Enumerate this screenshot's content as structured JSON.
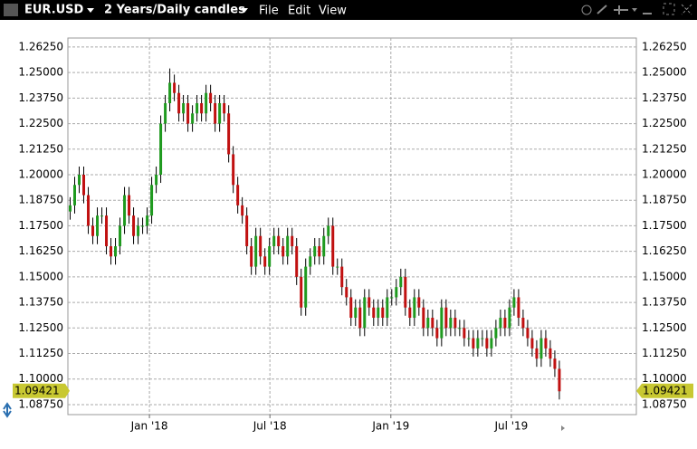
{
  "toolbar": {
    "symbol": "EUR.USD",
    "period": "2 Years/Daily candles",
    "menu": [
      "File",
      "Edit",
      "View"
    ]
  },
  "chart_data": {
    "type": "candlestick",
    "ohlc": [
      [
        1.182,
        1.189,
        1.178,
        1.185
      ],
      [
        1.185,
        1.199,
        1.181,
        1.195
      ],
      [
        1.195,
        1.204,
        1.191,
        1.2
      ],
      [
        1.2,
        1.204,
        1.186,
        1.19
      ],
      [
        1.19,
        1.194,
        1.171,
        1.175
      ],
      [
        1.175,
        1.179,
        1.166,
        1.17
      ],
      [
        1.17,
        1.184,
        1.166,
        1.18
      ],
      [
        1.18,
        1.184,
        1.176,
        1.18
      ],
      [
        1.18,
        1.184,
        1.161,
        1.165
      ],
      [
        1.165,
        1.169,
        1.156,
        1.16
      ],
      [
        1.16,
        1.169,
        1.156,
        1.165
      ],
      [
        1.165,
        1.179,
        1.161,
        1.175
      ],
      [
        1.175,
        1.194,
        1.171,
        1.19
      ],
      [
        1.19,
        1.194,
        1.176,
        1.18
      ],
      [
        1.18,
        1.184,
        1.166,
        1.17
      ],
      [
        1.17,
        1.179,
        1.166,
        1.175
      ],
      [
        1.175,
        1.179,
        1.171,
        1.175
      ],
      [
        1.175,
        1.184,
        1.171,
        1.18
      ],
      [
        1.18,
        1.199,
        1.176,
        1.195
      ],
      [
        1.195,
        1.204,
        1.191,
        1.2
      ],
      [
        1.2,
        1.229,
        1.196,
        1.225
      ],
      [
        1.225,
        1.239,
        1.221,
        1.235
      ],
      [
        1.235,
        1.252,
        1.231,
        1.245
      ],
      [
        1.245,
        1.249,
        1.236,
        1.24
      ],
      [
        1.24,
        1.244,
        1.226,
        1.23
      ],
      [
        1.23,
        1.239,
        1.226,
        1.235
      ],
      [
        1.235,
        1.239,
        1.221,
        1.225
      ],
      [
        1.225,
        1.234,
        1.221,
        1.23
      ],
      [
        1.23,
        1.239,
        1.226,
        1.235
      ],
      [
        1.235,
        1.239,
        1.226,
        1.23
      ],
      [
        1.23,
        1.244,
        1.226,
        1.24
      ],
      [
        1.24,
        1.244,
        1.231,
        1.235
      ],
      [
        1.235,
        1.239,
        1.221,
        1.225
      ],
      [
        1.225,
        1.239,
        1.221,
        1.235
      ],
      [
        1.235,
        1.239,
        1.226,
        1.23
      ],
      [
        1.23,
        1.234,
        1.206,
        1.21
      ],
      [
        1.21,
        1.214,
        1.191,
        1.195
      ],
      [
        1.195,
        1.199,
        1.181,
        1.185
      ],
      [
        1.185,
        1.189,
        1.176,
        1.18
      ],
      [
        1.18,
        1.184,
        1.161,
        1.165
      ],
      [
        1.165,
        1.169,
        1.151,
        1.155
      ],
      [
        1.155,
        1.174,
        1.151,
        1.17
      ],
      [
        1.17,
        1.174,
        1.156,
        1.16
      ],
      [
        1.16,
        1.164,
        1.151,
        1.155
      ],
      [
        1.155,
        1.169,
        1.151,
        1.165
      ],
      [
        1.165,
        1.174,
        1.161,
        1.17
      ],
      [
        1.17,
        1.174,
        1.161,
        1.165
      ],
      [
        1.165,
        1.169,
        1.156,
        1.16
      ],
      [
        1.16,
        1.174,
        1.156,
        1.17
      ],
      [
        1.17,
        1.174,
        1.161,
        1.165
      ],
      [
        1.165,
        1.169,
        1.146,
        1.15
      ],
      [
        1.15,
        1.154,
        1.131,
        1.135
      ],
      [
        1.135,
        1.159,
        1.131,
        1.155
      ],
      [
        1.155,
        1.164,
        1.151,
        1.16
      ],
      [
        1.16,
        1.169,
        1.156,
        1.165
      ],
      [
        1.165,
        1.169,
        1.156,
        1.16
      ],
      [
        1.16,
        1.174,
        1.156,
        1.17
      ],
      [
        1.17,
        1.179,
        1.166,
        1.175
      ],
      [
        1.175,
        1.179,
        1.151,
        1.155
      ],
      [
        1.155,
        1.159,
        1.151,
        1.155
      ],
      [
        1.155,
        1.159,
        1.141,
        1.145
      ],
      [
        1.145,
        1.149,
        1.136,
        1.14
      ],
      [
        1.14,
        1.144,
        1.126,
        1.13
      ],
      [
        1.13,
        1.139,
        1.126,
        1.135
      ],
      [
        1.135,
        1.139,
        1.121,
        1.125
      ],
      [
        1.125,
        1.144,
        1.121,
        1.14
      ],
      [
        1.14,
        1.144,
        1.131,
        1.135
      ],
      [
        1.135,
        1.139,
        1.126,
        1.13
      ],
      [
        1.13,
        1.139,
        1.126,
        1.135
      ],
      [
        1.135,
        1.139,
        1.126,
        1.13
      ],
      [
        1.13,
        1.144,
        1.126,
        1.14
      ],
      [
        1.14,
        1.144,
        1.136,
        1.14
      ],
      [
        1.14,
        1.149,
        1.136,
        1.145
      ],
      [
        1.145,
        1.154,
        1.141,
        1.15
      ],
      [
        1.15,
        1.154,
        1.131,
        1.135
      ],
      [
        1.135,
        1.139,
        1.126,
        1.13
      ],
      [
        1.13,
        1.144,
        1.126,
        1.14
      ],
      [
        1.14,
        1.144,
        1.131,
        1.135
      ],
      [
        1.135,
        1.139,
        1.121,
        1.125
      ],
      [
        1.125,
        1.134,
        1.121,
        1.13
      ],
      [
        1.13,
        1.134,
        1.121,
        1.125
      ],
      [
        1.125,
        1.129,
        1.116,
        1.12
      ],
      [
        1.12,
        1.139,
        1.116,
        1.135
      ],
      [
        1.135,
        1.139,
        1.121,
        1.125
      ],
      [
        1.125,
        1.134,
        1.121,
        1.13
      ],
      [
        1.13,
        1.134,
        1.121,
        1.125
      ],
      [
        1.125,
        1.129,
        1.121,
        1.125
      ],
      [
        1.125,
        1.129,
        1.116,
        1.12
      ],
      [
        1.12,
        1.124,
        1.116,
        1.12
      ],
      [
        1.12,
        1.124,
        1.111,
        1.115
      ],
      [
        1.115,
        1.124,
        1.111,
        1.12
      ],
      [
        1.12,
        1.124,
        1.116,
        1.12
      ],
      [
        1.12,
        1.124,
        1.111,
        1.115
      ],
      [
        1.115,
        1.124,
        1.111,
        1.12
      ],
      [
        1.12,
        1.129,
        1.116,
        1.125
      ],
      [
        1.125,
        1.134,
        1.121,
        1.13
      ],
      [
        1.13,
        1.134,
        1.121,
        1.125
      ],
      [
        1.125,
        1.139,
        1.121,
        1.135
      ],
      [
        1.135,
        1.144,
        1.131,
        1.14
      ],
      [
        1.14,
        1.144,
        1.126,
        1.13
      ],
      [
        1.13,
        1.134,
        1.121,
        1.125
      ],
      [
        1.125,
        1.129,
        1.116,
        1.12
      ],
      [
        1.12,
        1.124,
        1.111,
        1.115
      ],
      [
        1.115,
        1.119,
        1.106,
        1.11
      ],
      [
        1.11,
        1.124,
        1.106,
        1.12
      ],
      [
        1.12,
        1.124,
        1.111,
        1.115
      ],
      [
        1.115,
        1.119,
        1.106,
        1.11
      ],
      [
        1.11,
        1.114,
        1.101,
        1.105
      ],
      [
        1.105,
        1.109,
        1.09,
        1.094
      ]
    ],
    "colors": {
      "up": "#1f9a1f",
      "down": "#c01010",
      "wick": "#000000"
    },
    "xlim": [
      -0.5,
      125
    ],
    "xticks": [
      {
        "value": 17.5,
        "label": "Jan '18"
      },
      {
        "value": 44.1,
        "label": "Jul '18"
      },
      {
        "value": 70.8,
        "label": "Jan '19"
      },
      {
        "value": 97.4,
        "label": "Jul '19"
      }
    ],
    "ylim": [
      1.0826,
      1.2669
    ],
    "yticks": [
      {
        "value": 1.0875,
        "label": "1.08750"
      },
      {
        "value": 1.1,
        "label": "1.10000"
      },
      {
        "value": 1.1125,
        "label": "1.11250"
      },
      {
        "value": 1.125,
        "label": "1.12500"
      },
      {
        "value": 1.1375,
        "label": "1.13750"
      },
      {
        "value": 1.15,
        "label": "1.15000"
      },
      {
        "value": 1.1625,
        "label": "1.16250"
      },
      {
        "value": 1.175,
        "label": "1.17500"
      },
      {
        "value": 1.1875,
        "label": "1.18750"
      },
      {
        "value": 1.2,
        "label": "1.20000"
      },
      {
        "value": 1.2125,
        "label": "1.21250"
      },
      {
        "value": 1.225,
        "label": "1.22500"
      },
      {
        "value": 1.2375,
        "label": "1.23750"
      },
      {
        "value": 1.25,
        "label": "1.25000"
      },
      {
        "value": 1.2625,
        "label": "1.26250"
      }
    ],
    "grid": true,
    "last_value": 1.09421
  }
}
